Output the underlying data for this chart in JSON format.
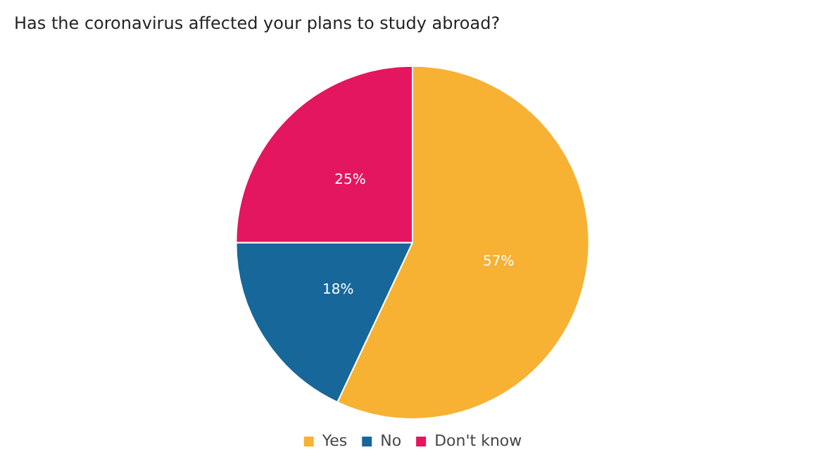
{
  "chart_data": {
    "type": "pie",
    "title": "Has the coronavirus affected your plans to study abroad?",
    "categories": [
      "Yes",
      "No",
      "Don't know"
    ],
    "values": [
      57,
      18,
      25
    ],
    "value_labels": [
      "57%",
      "18%",
      "25%"
    ],
    "colors": [
      "#f7b133",
      "#17679a",
      "#e3165f"
    ],
    "legend": "bottom"
  }
}
